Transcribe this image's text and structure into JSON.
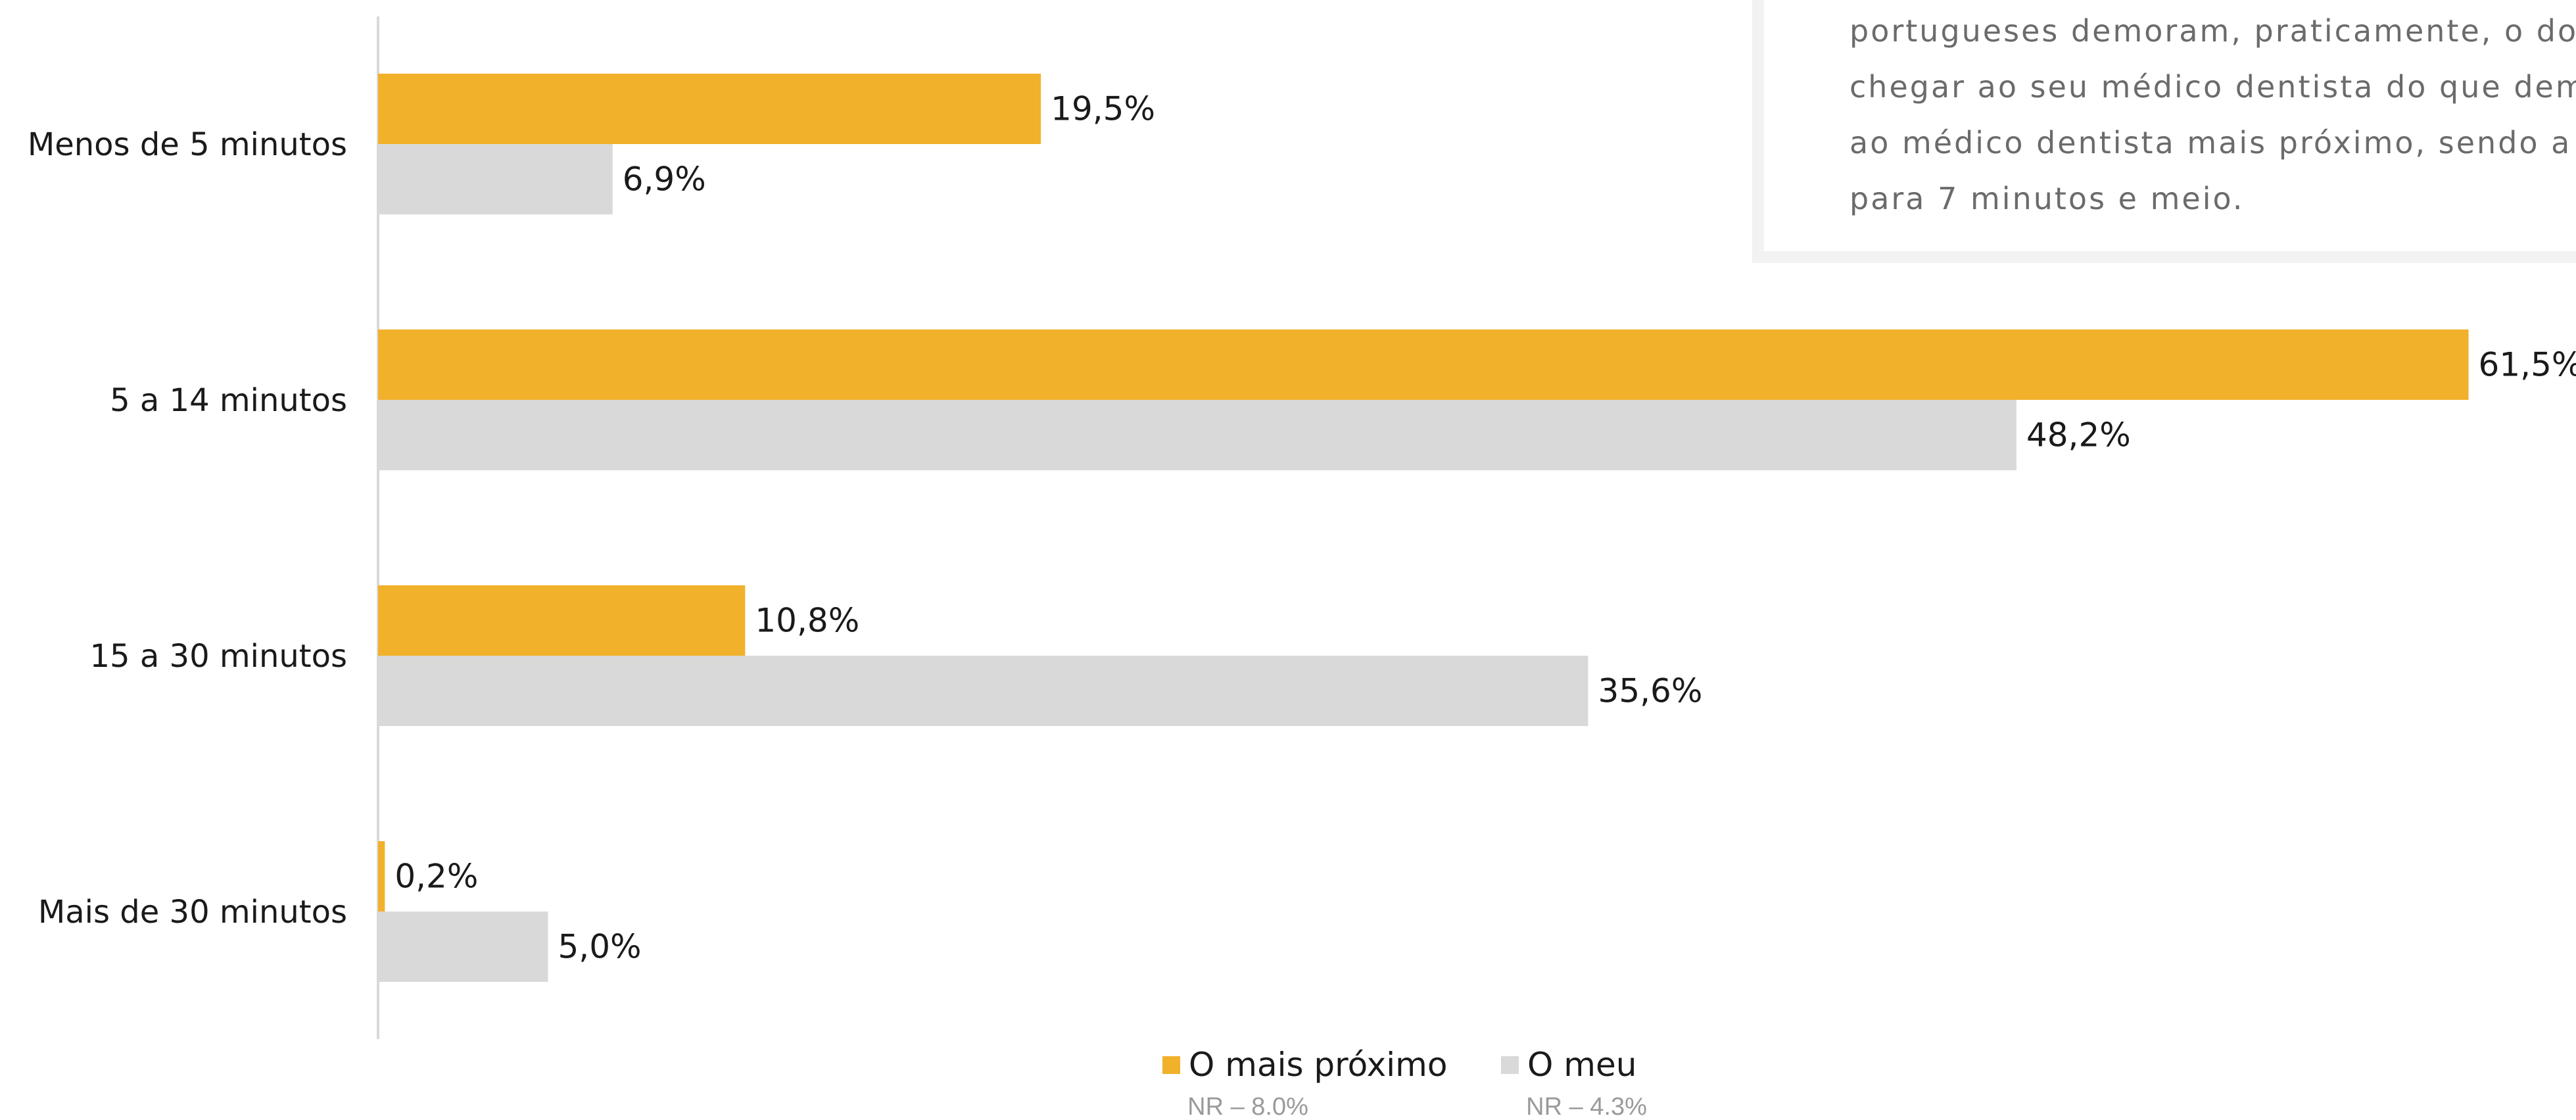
{
  "callout": {
    "lines": [
      "portugueses demoram, praticamente, o dob",
      "chegar ao seu médico dentista do que demora",
      "ao médico dentista mais próximo, sendo a",
      "para 7 minutos e meio."
    ]
  },
  "chart_data": {
    "type": "bar",
    "orientation": "horizontal",
    "categories": [
      "Menos de 5 minutos",
      "5 a 14 minutos",
      "15 a 30 minutos",
      "Mais de 30 minutos"
    ],
    "series": [
      {
        "name": "O mais próximo",
        "color": "#F2B12B",
        "values": [
          19.5,
          61.5,
          10.8,
          0.2
        ],
        "labels": [
          "19,5%",
          "61,5%",
          "10,8%",
          "0,2%"
        ]
      },
      {
        "name": "O meu",
        "color": "#D9D9D9",
        "values": [
          6.9,
          48.2,
          35.6,
          5.0
        ],
        "labels": [
          "6,9%",
          "48,2%",
          "35,6%",
          "5,0%"
        ]
      }
    ],
    "legend": {
      "position": "bottom",
      "items": [
        {
          "label": "O mais próximo",
          "note": "NR – 8.0%"
        },
        {
          "label": "O meu",
          "note": "NR – 4.3%"
        }
      ]
    },
    "grid": false
  }
}
